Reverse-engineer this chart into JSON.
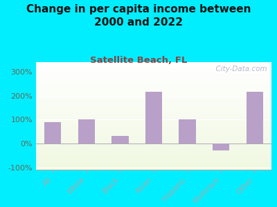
{
  "title": "Change in per capita income between\n2000 and 2022",
  "subtitle": "Satellite Beach, FL",
  "categories": [
    "All",
    "White",
    "Black",
    "Asian",
    "Hispanic",
    "Multirace",
    "Other"
  ],
  "values": [
    90,
    102,
    30,
    215,
    100,
    -30,
    215
  ],
  "bar_color": "#b8a0c8",
  "title_fontsize": 11,
  "subtitle_fontsize": 9.5,
  "subtitle_color": "#884444",
  "title_color": "#111111",
  "background_outer": "#00eeff",
  "ylim": [
    -110,
    340
  ],
  "yticks": [
    -100,
    0,
    100,
    200,
    300
  ],
  "watermark": "  City-Data.com",
  "watermark_color": "#aaaacc",
  "axis_color": "#aaaaaa",
  "tick_label_color": "#666655",
  "grid_color": "#ddddcc"
}
